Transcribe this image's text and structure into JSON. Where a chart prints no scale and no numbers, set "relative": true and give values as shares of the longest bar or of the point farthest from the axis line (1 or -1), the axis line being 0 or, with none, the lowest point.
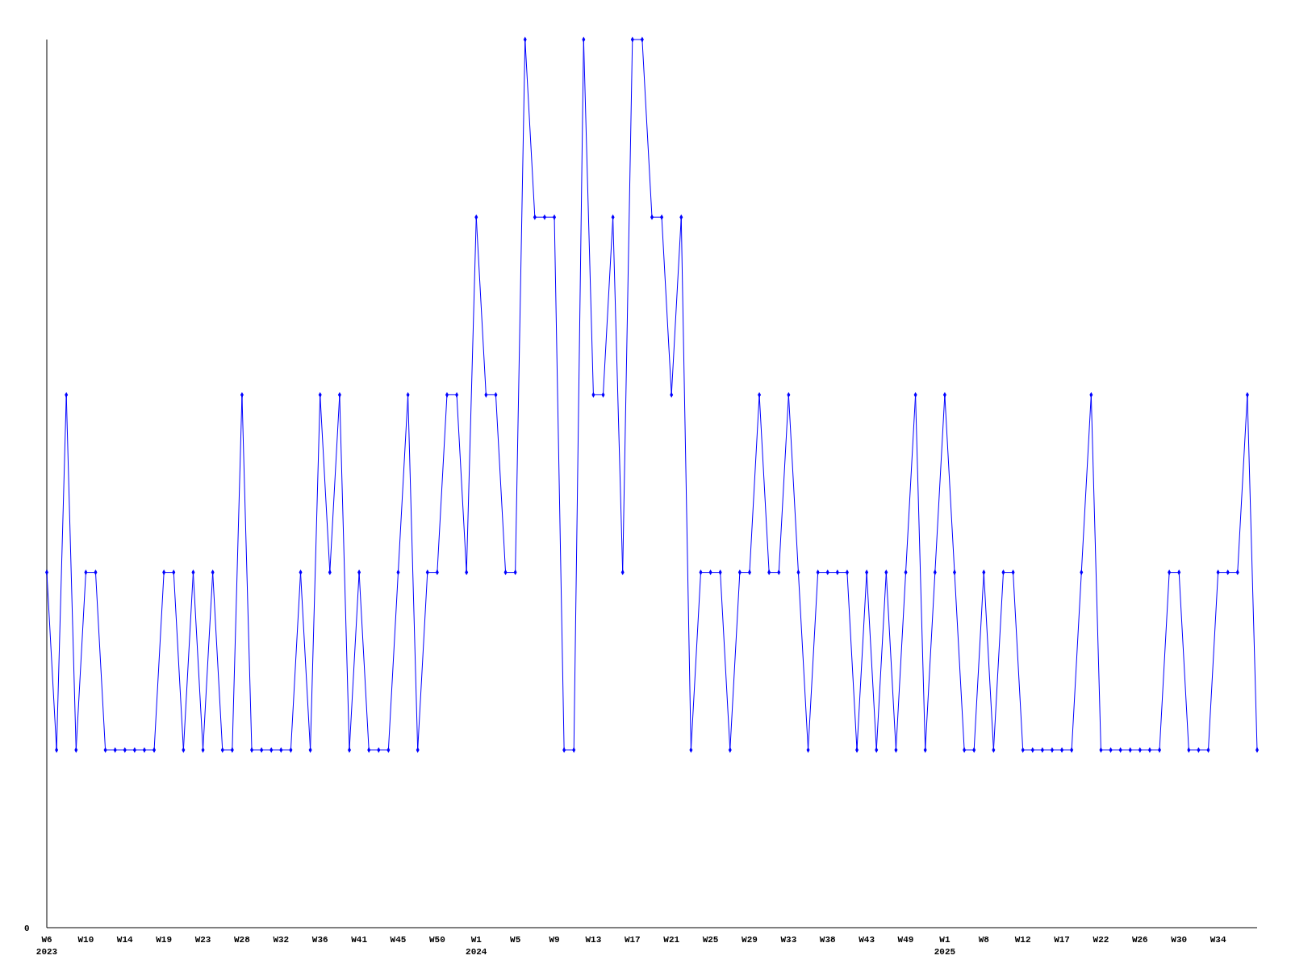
{
  "chart_data": {
    "type": "line",
    "relative": true,
    "marker": "diamond",
    "annotations": [
      "0"
    ],
    "categories": [
      "W6\n2023",
      null,
      null,
      null,
      "W10",
      null,
      null,
      null,
      "W14",
      null,
      null,
      null,
      "W19",
      null,
      null,
      null,
      "W23",
      null,
      null,
      null,
      "W28",
      null,
      null,
      null,
      "W32",
      null,
      null,
      null,
      "W36",
      null,
      null,
      null,
      "W41",
      null,
      null,
      null,
      "W45",
      null,
      null,
      null,
      "W50",
      null,
      null,
      null,
      "W1\n2024",
      null,
      null,
      null,
      "W5",
      null,
      null,
      null,
      "W9",
      null,
      null,
      null,
      "W13",
      null,
      null,
      null,
      "W17",
      null,
      null,
      null,
      "W21",
      null,
      null,
      null,
      "W25",
      null,
      null,
      null,
      "W29",
      null,
      null,
      null,
      "W33",
      null,
      null,
      null,
      "W38",
      null,
      null,
      null,
      "W43",
      null,
      null,
      null,
      "W49",
      null,
      null,
      null,
      "W1\n2025",
      null,
      null,
      null,
      "W8",
      null,
      null,
      null,
      "W12",
      null,
      null,
      null,
      "W17",
      null,
      null,
      null,
      "W22",
      null,
      null,
      null,
      "W26",
      null,
      null,
      null,
      "W30",
      null,
      null,
      null,
      "W34",
      null,
      null,
      null,
      null
    ],
    "series": [
      {
        "color": "#0000ff",
        "values": [
          0.4,
          0.2,
          0.6,
          0.2,
          0.4,
          0.4,
          0.2,
          0.2,
          0.2,
          0.2,
          0.2,
          0.2,
          0.4,
          0.4,
          0.2,
          0.4,
          0.2,
          0.4,
          0.2,
          0.2,
          0.6,
          0.2,
          0.2,
          0.2,
          0.2,
          0.2,
          0.4,
          0.2,
          0.6,
          0.4,
          0.6,
          0.2,
          0.4,
          0.2,
          0.2,
          0.2,
          0.4,
          0.6,
          0.2,
          0.4,
          0.4,
          0.6,
          0.6,
          0.4,
          0.8,
          0.6,
          0.6,
          0.4,
          0.4,
          1,
          0.8,
          0.8,
          0.8,
          0.2,
          0.2,
          1,
          0.6,
          0.6,
          0.8,
          0.4,
          1,
          1,
          0.8,
          0.8,
          0.6,
          0.8,
          0.2,
          0.4,
          0.4,
          0.4,
          0.2,
          0.4,
          0.4,
          0.6,
          0.4,
          0.4,
          0.6,
          0.4,
          0.2,
          0.4,
          0.4,
          0.4,
          0.4,
          0.2,
          0.4,
          0.2,
          0.4,
          0.2,
          0.4,
          0.6,
          0.2,
          0.4,
          0.6,
          0.4,
          0.2,
          0.2,
          0.4,
          0.2,
          0.4,
          0.4,
          0.2,
          0.2,
          0.2,
          0.2,
          0.2,
          0.2,
          0.4,
          0.6,
          0.2,
          0.2,
          0.2,
          0.2,
          0.2,
          0.2,
          0.2,
          0.4,
          0.4,
          0.2,
          0.2,
          0.2,
          0.4,
          0.4,
          0.4,
          0.6,
          0.2
        ]
      }
    ]
  }
}
